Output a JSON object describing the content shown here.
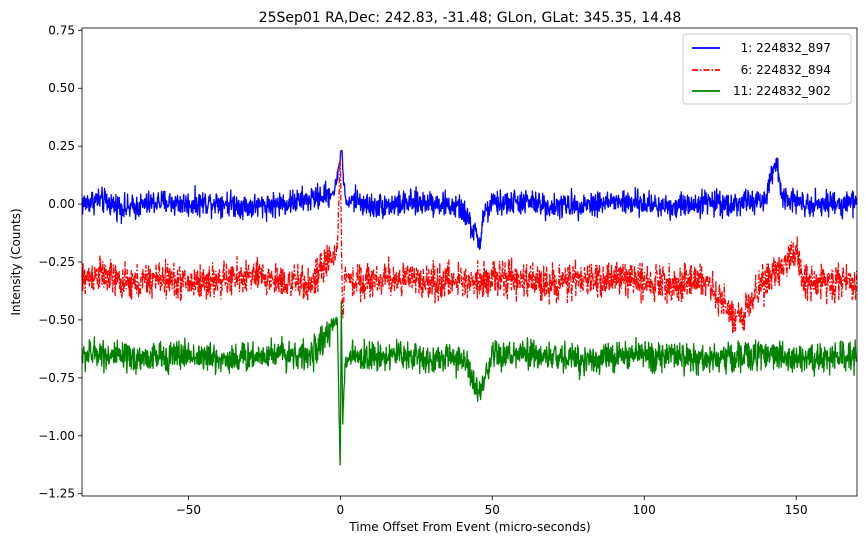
{
  "chart_data": {
    "type": "line",
    "title": "25Sep01 RA,Dec:  242.83, -31.48; GLon, GLat:  345.35,  14.48",
    "xlabel": "Time Offset From Event (micro-seconds)",
    "ylabel": "Intensity (Counts)",
    "xlim": [
      -85,
      170
    ],
    "ylim": [
      -1.26,
      0.76
    ],
    "xticks": [
      -50,
      0,
      50,
      100,
      150
    ],
    "xtick_labels": [
      "−50",
      "0",
      "50",
      "100",
      "150"
    ],
    "yticks": [
      -1.25,
      -1.0,
      -0.75,
      -0.5,
      -0.25,
      0.0,
      0.25,
      0.5,
      0.75
    ],
    "ytick_labels": [
      "−1.25",
      "−1.00",
      "−0.75",
      "−0.50",
      "−0.25",
      "0.00",
      "0.25",
      "0.50",
      "0.75"
    ],
    "grid": false,
    "legend_position": "top-right",
    "series": [
      {
        "name": "  1: 224832_897",
        "color": "#0000ff",
        "linestyle": "solid",
        "baseline": 0.0,
        "noise_amplitude": 0.05,
        "x": [
          -85,
          -80,
          -70,
          -60,
          -50,
          -40,
          -30,
          -20,
          -10,
          -2,
          0,
          0.5,
          1,
          2,
          5,
          10,
          20,
          30,
          40,
          46,
          47,
          50,
          60,
          70,
          80,
          90,
          100,
          110,
          120,
          130,
          140,
          143.5,
          145,
          150,
          160,
          170
        ],
        "y": [
          0.0,
          0.02,
          -0.02,
          0.01,
          0.0,
          0.01,
          -0.01,
          0.0,
          0.02,
          0.05,
          0.2,
          0.26,
          0.1,
          0.0,
          0.02,
          -0.01,
          0.0,
          0.01,
          -0.02,
          -0.17,
          -0.05,
          0.0,
          0.01,
          -0.01,
          0.0,
          0.01,
          0.0,
          -0.01,
          0.01,
          0.0,
          0.02,
          0.19,
          0.05,
          0.01,
          0.0,
          0.01
        ]
      },
      {
        "name": "  6: 224832_894",
        "color": "#ff0000",
        "linestyle": "dashdot",
        "baseline": -0.33,
        "noise_amplitude": 0.07,
        "x": [
          -85,
          -80,
          -70,
          -60,
          -50,
          -40,
          -30,
          -20,
          -10,
          -1,
          0,
          0.3,
          0.8,
          1.5,
          3,
          10,
          20,
          30,
          40,
          50,
          60,
          70,
          80,
          90,
          100,
          110,
          120,
          130,
          140,
          150,
          152,
          160,
          170
        ],
        "y": [
          -0.33,
          -0.3,
          -0.35,
          -0.32,
          -0.34,
          -0.33,
          -0.31,
          -0.33,
          -0.35,
          -0.2,
          0.22,
          -0.1,
          -0.5,
          -0.3,
          -0.33,
          -0.33,
          -0.32,
          -0.34,
          -0.33,
          -0.32,
          -0.33,
          -0.34,
          -0.33,
          -0.32,
          -0.33,
          -0.34,
          -0.33,
          -0.5,
          -0.33,
          -0.2,
          -0.33,
          -0.34,
          -0.33
        ]
      },
      {
        "name": "11: 224832_902",
        "color": "#008000",
        "linestyle": "solid",
        "baseline": -0.66,
        "noise_amplitude": 0.06,
        "x": [
          -85,
          -80,
          -70,
          -60,
          -50,
          -40,
          -30,
          -20,
          -10,
          -1,
          0,
          0.3,
          0.8,
          1.5,
          3,
          10,
          20,
          30,
          40,
          46,
          50,
          60,
          70,
          80,
          90,
          100,
          110,
          120,
          130,
          140,
          150,
          160,
          170
        ],
        "y": [
          -0.66,
          -0.64,
          -0.67,
          -0.66,
          -0.65,
          -0.67,
          -0.66,
          -0.64,
          -0.66,
          -0.5,
          -1.17,
          -0.4,
          -0.95,
          -0.7,
          -0.66,
          -0.66,
          -0.65,
          -0.67,
          -0.66,
          -0.83,
          -0.66,
          -0.65,
          -0.66,
          -0.67,
          -0.66,
          -0.65,
          -0.66,
          -0.67,
          -0.66,
          -0.65,
          -0.66,
          -0.67,
          -0.66
        ]
      }
    ]
  }
}
